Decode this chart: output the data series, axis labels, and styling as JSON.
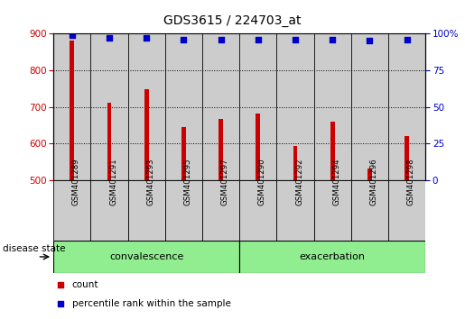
{
  "title": "GDS3615 / 224703_at",
  "samples": [
    "GSM401289",
    "GSM401291",
    "GSM401293",
    "GSM401295",
    "GSM401297",
    "GSM401290",
    "GSM401292",
    "GSM401294",
    "GSM401296",
    "GSM401298"
  ],
  "counts": [
    880,
    712,
    748,
    645,
    668,
    683,
    594,
    660,
    533,
    620
  ],
  "percentile_ranks": [
    99,
    97,
    97,
    96,
    96,
    96,
    96,
    96,
    95,
    96
  ],
  "ylim": [
    500,
    900
  ],
  "yticks": [
    500,
    600,
    700,
    800,
    900
  ],
  "right_yticks": [
    0,
    25,
    50,
    75,
    100
  ],
  "right_ylim": [
    0,
    100
  ],
  "bar_color": "#cc0000",
  "dot_color": "#0000cc",
  "grid_color": "#000000",
  "convalescence_label": "convalescence",
  "exacerbation_label": "exacerbation",
  "disease_state_label": "disease state",
  "legend_count_label": "count",
  "legend_pct_label": "percentile rank within the sample",
  "group_bg_color": "#90ee90",
  "tick_area_bg": "#cccccc",
  "bar_width": 0.12,
  "figsize": [
    5.15,
    3.54
  ],
  "dpi": 100
}
